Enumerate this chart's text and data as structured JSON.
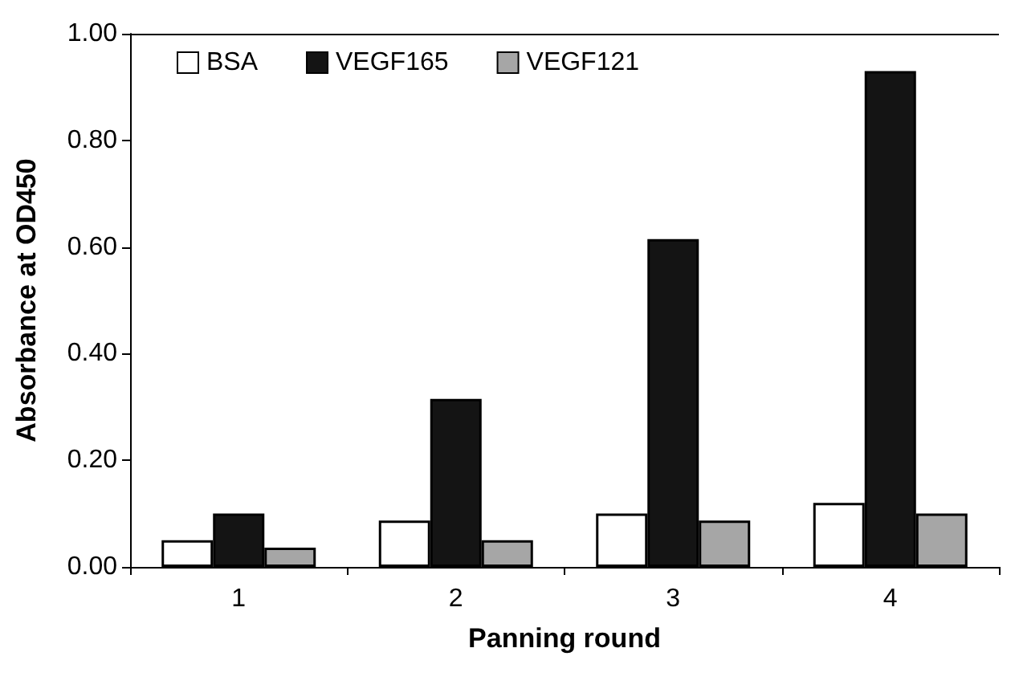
{
  "chart_data": {
    "type": "bar",
    "xlabel": "Panning round",
    "ylabel": "Absorbance at OD450",
    "categories": [
      "1",
      "2",
      "3",
      "4"
    ],
    "series": [
      {
        "name": "BSA",
        "color": "#ffffff",
        "values": [
          0.05,
          0.087,
          0.1,
          0.12
        ]
      },
      {
        "name": "VEGF165",
        "color": "#141414",
        "values": [
          0.1,
          0.315,
          0.615,
          0.93
        ]
      },
      {
        "name": "VEGF121",
        "color": "#a6a6a6",
        "values": [
          0.036,
          0.05,
          0.087,
          0.1
        ]
      }
    ],
    "ylim": [
      0,
      1
    ],
    "yticks": [
      {
        "value": 0,
        "label": "0.00"
      },
      {
        "value": 0.2,
        "label": "0.20"
      },
      {
        "value": 0.4,
        "label": "0.40"
      },
      {
        "value": 0.6,
        "label": "0.60"
      },
      {
        "value": 0.8,
        "label": "0.80"
      },
      {
        "value": 1,
        "label": "1.00"
      }
    ],
    "grid": false,
    "legend": "top left"
  }
}
